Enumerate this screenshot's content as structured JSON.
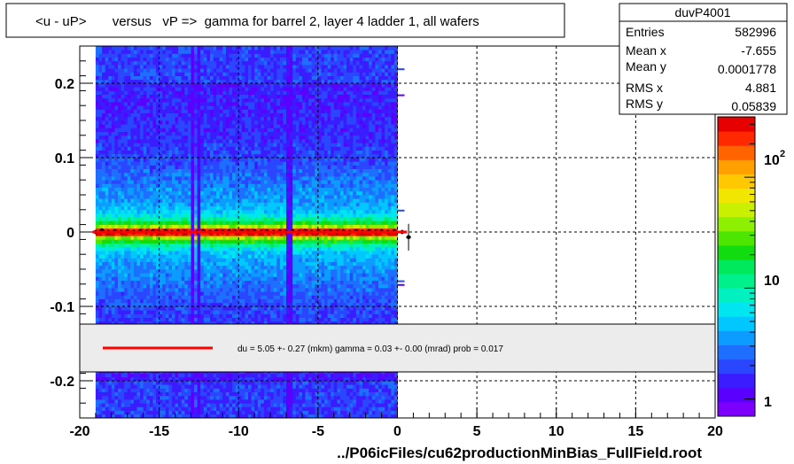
{
  "title": "<u - uP>       versus   vP =>  gamma for barrel 2, layer 4 ladder 1, all wafers",
  "footer": "../P06icFiles/cu62productionMinBias_FullField.root",
  "stats": {
    "name": "duvP4001",
    "rows": [
      {
        "label": "Entries",
        "value": "582996"
      },
      {
        "label": "Mean x",
        "value": "-7.655"
      },
      {
        "label": "Mean y",
        "value": "0.0001778"
      },
      {
        "label": "RMS x",
        "value": "4.881"
      },
      {
        "label": "RMS y",
        "value": "0.05839"
      }
    ]
  },
  "fit_legend": "du =    5.05 +-  0.27 (mkm) gamma =    0.03 +-  0.00 (mrad) prob = 0.017",
  "colors": {
    "fit_line": "#ff0000",
    "profile": "#000000",
    "frame": "#000000"
  },
  "chart_data": {
    "type": "heatmap",
    "xlim": [
      -20,
      20
    ],
    "ylim": [
      -0.25,
      0.25
    ],
    "x_ticks": [
      -20,
      -15,
      -10,
      -5,
      0,
      5,
      10,
      15,
      20
    ],
    "x_tick_labels": [
      "-20",
      "-15",
      "-10",
      "-5",
      "0",
      "5",
      "10",
      "15",
      "20"
    ],
    "y_ticks": [
      -0.2,
      -0.1,
      0,
      0.1,
      0.2
    ],
    "y_tick_labels": [
      "-0.2",
      "-0.1",
      "0",
      "0.1",
      "0.2"
    ],
    "grid": true,
    "occupied_x_range": [
      -19,
      0
    ],
    "gap_columns": [
      -13,
      -12.6,
      -6.9
    ],
    "fit": {
      "x": [
        -19.2,
        0.6
      ],
      "y": [
        0,
        0
      ]
    },
    "profile": {
      "x": [
        -19,
        -18.6,
        -18.2,
        -17.8,
        -17.4,
        -17,
        -16.6,
        -16.2,
        -15.8,
        -15.4,
        -15,
        -14.6,
        -14.2,
        -13.8,
        -13.4,
        -12.6,
        -12.2,
        -11.8,
        -11.4,
        -11,
        -10.6,
        -10.2,
        -9.8,
        -9.4,
        -9,
        -8.6,
        -8.2,
        -7.8,
        -7.4,
        -7,
        -6.6,
        -6.2,
        -5.8,
        -5.4,
        -5,
        -4.6,
        -4.2,
        -3.8,
        -3.4,
        -3,
        -2.6,
        -2.2,
        -1.8,
        -1.4,
        -1,
        -0.6,
        -0.2,
        0.3,
        0.7
      ],
      "y": [
        0.0,
        0.002,
        0.0,
        0.001,
        0.0,
        0.001,
        0.0,
        0.001,
        0.0,
        0.001,
        0.0,
        0.001,
        0.0,
        0.001,
        0.0,
        0.0,
        0.001,
        0.0,
        0.001,
        0.0,
        0.001,
        0.0,
        0.001,
        0.0,
        0.001,
        0.0,
        0.001,
        0.0,
        0.001,
        0.0,
        0.001,
        0.0,
        0.001,
        0.0,
        0.001,
        0.0,
        0.001,
        0.0,
        0.001,
        0.0,
        0.001,
        0.0,
        0.001,
        0.0,
        0.001,
        0.0,
        0.001,
        0.0,
        -0.007
      ]
    },
    "colorbar": {
      "ticks": [
        1,
        10,
        100
      ],
      "tick_labels": [
        "1",
        "10",
        "10",
        "2"
      ],
      "scale": "log"
    }
  }
}
